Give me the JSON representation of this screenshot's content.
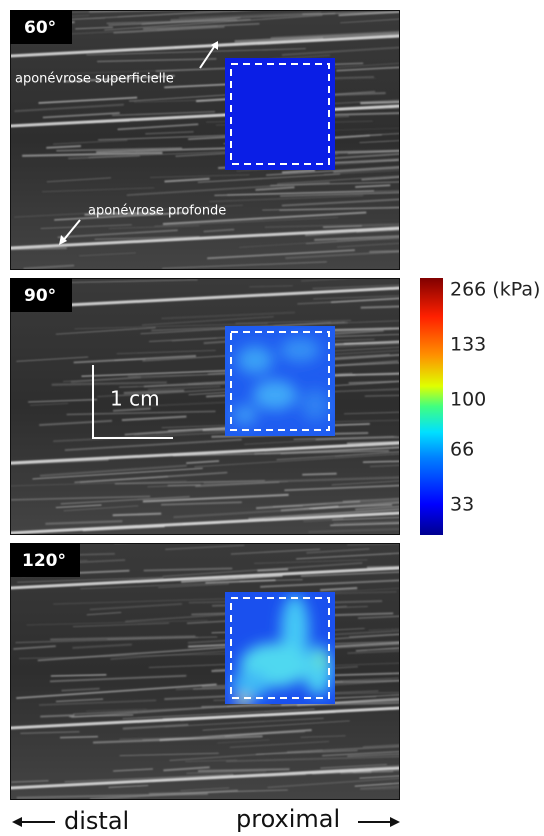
{
  "panels": [
    {
      "label": "60°",
      "annotations": [
        "aponévrose superficielle",
        "aponévrose profonde"
      ]
    },
    {
      "label": "90°",
      "scale_bar": "1 cm"
    },
    {
      "label": "120°"
    }
  ],
  "colorbar": {
    "labels": [
      "266 (kPa)",
      "133",
      "100",
      "66",
      "33"
    ]
  },
  "direction": {
    "left": "distal",
    "right": "proximal"
  }
}
